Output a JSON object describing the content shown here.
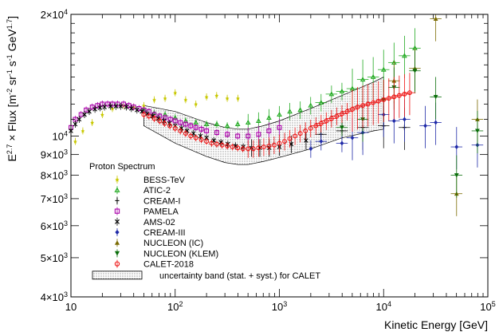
{
  "chart_data": {
    "type": "scatter",
    "xscale": "log",
    "yscale": "log",
    "xlim": [
      10,
      100000
    ],
    "ylim": [
      4000,
      20000
    ],
    "xlabel": "Kinetic Energy [GeV]",
    "ylabel": "E^2.7 × Flux [m^-2 sr^-1 s^-1 GeV^1.7]",
    "x_ticks": [
      {
        "value": 10,
        "label": "10"
      },
      {
        "value": 100,
        "label": "10^2"
      },
      {
        "value": 1000,
        "label": "10^3"
      },
      {
        "value": 10000,
        "label": "10^4"
      },
      {
        "value": 100000,
        "label": "10^5"
      }
    ],
    "y_ticks": [
      {
        "value": 4000,
        "label": "4×10^3"
      },
      {
        "value": 5000,
        "label": "5×10^3"
      },
      {
        "value": 6000,
        "label": "6×10^3"
      },
      {
        "value": 7000,
        "label": "7×10^3"
      },
      {
        "value": 8000,
        "label": "8×10^3"
      },
      {
        "value": 9000,
        "label": "9×10^3"
      },
      {
        "value": 10000,
        "label": "10^4"
      },
      {
        "value": 20000,
        "label": "2×10^4"
      }
    ],
    "legend_title": "Proton Spectrum",
    "legend_position": "bottom-left",
    "band_label": "uncertainty band (stat. + syst.) for CALET",
    "band": {
      "x": [
        50,
        100,
        200,
        300,
        400,
        500,
        700,
        1000,
        2000,
        4000,
        8000,
        10000
      ],
      "lower": [
        10600,
        9600,
        8900,
        8600,
        8500,
        8500,
        8650,
        8850,
        9300,
        9900,
        10300,
        10400
      ],
      "upper": [
        11900,
        11500,
        10800,
        10500,
        10400,
        10400,
        10600,
        10900,
        11700,
        12600,
        13600,
        14000
      ]
    },
    "series": [
      {
        "name": "BESS-TeV",
        "color": "#c8c800",
        "marker": "star",
        "x": [
          11,
          13,
          16,
          20,
          25,
          32,
          40,
          50,
          63,
          80,
          100,
          126,
          158,
          200,
          250,
          316,
          400
        ],
        "y": [
          9700,
          10300,
          10800,
          11300,
          11700,
          11900,
          11800,
          11900,
          12300,
          12400,
          12800,
          12300,
          12000,
          12500,
          12600,
          12400,
          12400
        ]
      },
      {
        "name": "ATIC-2",
        "color": "#22aa22",
        "marker": "triangle-up-open",
        "x": [
          50,
          63,
          80,
          100,
          126,
          158,
          200,
          251,
          316,
          398,
          501,
          631,
          794,
          1000,
          1259,
          1585,
          1995,
          2512,
          3162,
          3981,
          5012,
          6310,
          7943,
          10000,
          12589,
          15849,
          19953
        ],
        "y": [
          11600,
          11400,
          11300,
          11100,
          10900,
          10800,
          10700,
          10700,
          10600,
          10700,
          10800,
          10900,
          11100,
          11300,
          11500,
          11600,
          11900,
          12100,
          12700,
          12900,
          13100,
          13800,
          14000,
          14600,
          15200,
          15800,
          16500
        ]
      },
      {
        "name": "CREAM-I",
        "color": "#111111",
        "marker": "plus",
        "x": [
          2500,
          3981,
          6310,
          10000,
          15849
        ],
        "y": [
          10100,
          10300,
          10500,
          10600,
          10500
        ]
      },
      {
        "name": "PAMELA",
        "color": "#aa00aa",
        "marker": "square-open",
        "x": [
          10,
          11,
          12.5,
          14,
          16,
          18,
          20,
          22.5,
          25,
          28,
          32,
          36,
          40,
          45,
          50,
          56,
          63,
          71,
          80,
          90,
          100,
          112,
          126,
          141,
          158,
          178,
          200,
          251,
          316,
          398,
          501,
          631,
          794,
          1000
        ],
        "y": [
          10500,
          11000,
          11300,
          11600,
          11800,
          11900,
          12000,
          12000,
          12000,
          12000,
          12000,
          11900,
          11800,
          11700,
          11600,
          11500,
          11300,
          11200,
          11100,
          11000,
          10900,
          10800,
          10700,
          10600,
          10500,
          10400,
          10300,
          10200,
          10100,
          10000,
          10000,
          10100,
          10300,
          10500
        ]
      },
      {
        "name": "AMS-02",
        "color": "#000000",
        "marker": "cross",
        "x": [
          10,
          11,
          12,
          13.5,
          15,
          17,
          19,
          21,
          24,
          27,
          30,
          34,
          38,
          43,
          48,
          54,
          61,
          69,
          78,
          88,
          100,
          115,
          130,
          150,
          175,
          200,
          235,
          275,
          320,
          380,
          450,
          540,
          650,
          800,
          1000,
          1300,
          1800
        ],
        "y": [
          10300,
          10700,
          11000,
          11300,
          11500,
          11650,
          11750,
          11800,
          11850,
          11850,
          11850,
          11800,
          11700,
          11600,
          11500,
          11350,
          11200,
          11050,
          10900,
          10750,
          10600,
          10450,
          10300,
          10150,
          10000,
          9900,
          9750,
          9650,
          9550,
          9450,
          9400,
          9350,
          9350,
          9350,
          9400,
          9550,
          9750
        ]
      },
      {
        "name": "CREAM-III",
        "color": "#1f2aa8",
        "marker": "diamond",
        "x": [
          2000,
          2512,
          3981,
          5012,
          6310,
          10000,
          12589,
          15849,
          25119,
          31623,
          50119,
          79433
        ],
        "y": [
          9300,
          9700,
          9600,
          9900,
          10200,
          11300,
          10900,
          11000,
          10600,
          10800,
          9400,
          9500
        ]
      },
      {
        "name": "NUCLEON (IC)",
        "color": "#7a6a00",
        "marker": "triangle-up",
        "x": [
          12589,
          19953,
          31623,
          50119,
          79433
        ],
        "y": [
          13700,
          14700,
          19500,
          7200,
          11000
        ]
      },
      {
        "name": "NUCLEON (KLEM)",
        "color": "#0a6e0a",
        "marker": "triangle-down",
        "x": [
          3981,
          6310,
          10000,
          12589,
          19953,
          31623,
          50119,
          79433
        ],
        "y": [
          10500,
          11000,
          12300,
          13200,
          14500,
          12500,
          8000,
          10300
        ]
      },
      {
        "name": "CALET-2018",
        "color": "#ee1111",
        "marker": "circle-open",
        "x": [
          50,
          56,
          63,
          71,
          79,
          89,
          100,
          112,
          126,
          141,
          158,
          178,
          200,
          224,
          251,
          282,
          316,
          355,
          398,
          447,
          501,
          562,
          631,
          708,
          794,
          891,
          1000,
          1122,
          1259,
          1413,
          1585,
          1778,
          1995,
          2239,
          2512,
          2818,
          3162,
          3548,
          3981,
          4467,
          5012,
          5623,
          6310,
          7079,
          7943,
          8913,
          10000,
          11220,
          12589,
          14125,
          15849,
          17783
        ],
        "y": [
          11300,
          11200,
          11050,
          10900,
          10750,
          10600,
          10450,
          10300,
          10150,
          10000,
          9900,
          9800,
          9700,
          9600,
          9550,
          9500,
          9450,
          9400,
          9350,
          9300,
          9300,
          9300,
          9350,
          9400,
          9450,
          9500,
          9600,
          9700,
          9850,
          10000,
          10150,
          10300,
          10450,
          10600,
          10750,
          10900,
          11050,
          11200,
          11350,
          11500,
          11650,
          11800,
          11900,
          12000,
          12100,
          12200,
          12300,
          12400,
          12500,
          12600,
          12700,
          12800
        ]
      }
    ]
  }
}
